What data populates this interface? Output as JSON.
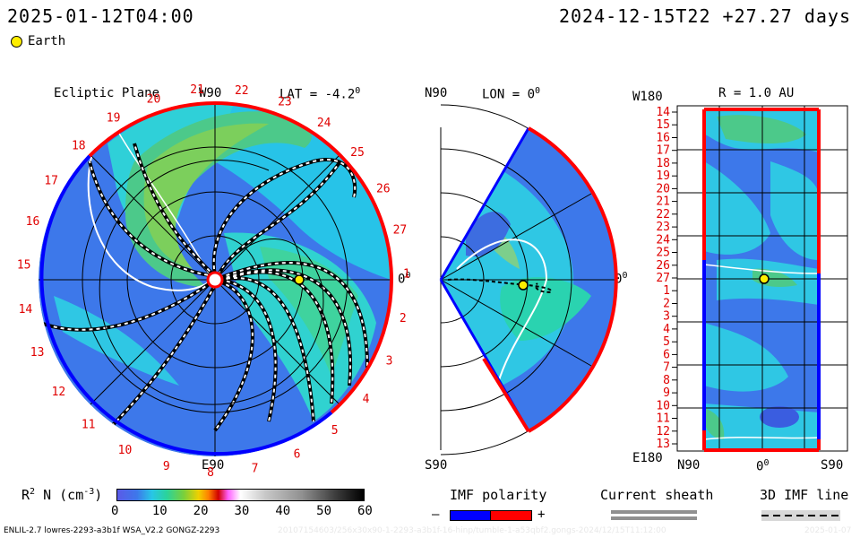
{
  "header": {
    "left_datetime": "2025-01-12T04:00",
    "right_datetime": "2024-12-15T22 +27.27 days",
    "earth_label": "Earth"
  },
  "colors": {
    "earth_marker": "#ffee00",
    "polarity_negative": "#0000ff",
    "polarity_positive": "#ff0000",
    "label_red": "#e00000"
  },
  "ecliptic_panel": {
    "title": "Ecliptic Plane",
    "top_label": "W90",
    "lat_label": "LAT = -4.2",
    "lat_degree": "0",
    "right_label": "0",
    "right_degree": "0",
    "bottom_label": "E90",
    "carrington_labels": [
      "1",
      "2",
      "3",
      "4",
      "5",
      "6",
      "7",
      "8",
      "9",
      "10",
      "11",
      "12",
      "13",
      "14",
      "15",
      "16",
      "17",
      "18",
      "19",
      "20",
      "21",
      "22",
      "23",
      "24",
      "25",
      "26",
      "27"
    ]
  },
  "meridional_panel": {
    "top_label": "N90",
    "lon_label": "LON = 0",
    "lon_degree": "0",
    "right_label": "0",
    "right_degree": "0",
    "bottom_label": "S90"
  },
  "shell_panel": {
    "top_left_label": "W180",
    "r_label": "R = 1.0 AU",
    "bottom_left_label": "E180",
    "x_labels": [
      "N90",
      "0",
      "S90"
    ],
    "x_zero_degree": "0",
    "row_labels": [
      "14",
      "15",
      "16",
      "17",
      "18",
      "19",
      "20",
      "21",
      "22",
      "23",
      "24",
      "25",
      "26",
      "27",
      "1",
      "2",
      "3",
      "4",
      "5",
      "6",
      "7",
      "8",
      "9",
      "10",
      "11",
      "12",
      "13"
    ]
  },
  "colorbar": {
    "label_prefix": "R",
    "label_sup": "2",
    "label_mid": " N (cm",
    "label_sup2": "-3",
    "label_suffix": ")",
    "ticks": [
      "0",
      "10",
      "20",
      "30",
      "40",
      "50",
      "60"
    ]
  },
  "imf_polarity": {
    "title": "IMF polarity",
    "minus": "–",
    "plus": "+"
  },
  "current_sheath": {
    "title": "Current sheath"
  },
  "imf_line": {
    "title": "3D IMF line"
  },
  "footer": {
    "left_text": "ENLIL-2.7 lowres-2293-a3b1f WSA_V2.2 GONGZ-2293",
    "right_text": "20107154603/256x30x90-1-2293-a3b1f-16-hinp/tumble-1-a53qbf2.gongs-2024/12/15T11:12:00",
    "far_right_text": "2025-01-07"
  }
}
